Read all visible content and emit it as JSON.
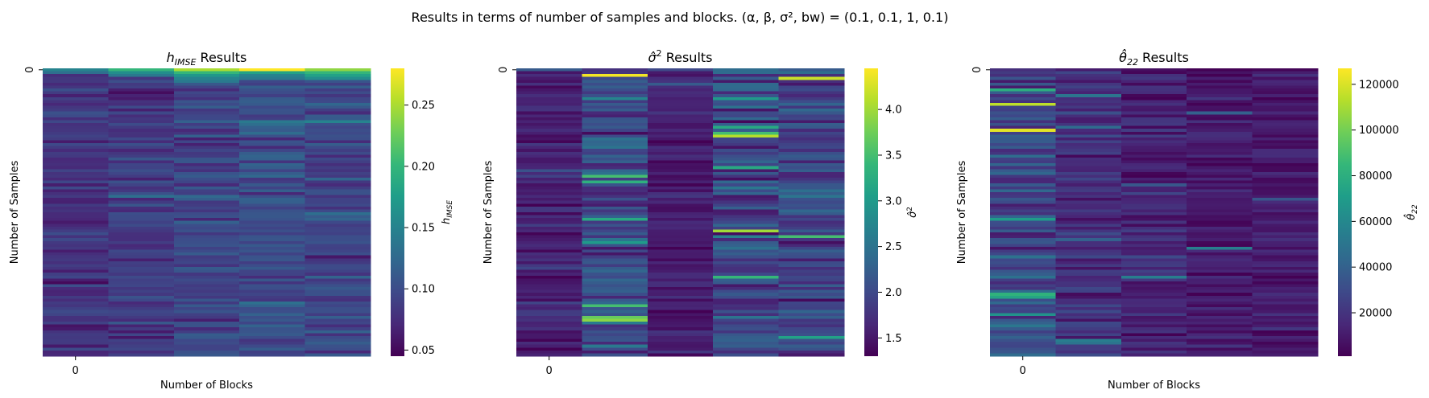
{
  "suptitle": "Results in terms of number of samples and blocks. (α, β, σ², bw) = (0.1, 0.1, 1, 0.1)",
  "colormap": [
    "#440154",
    "#482878",
    "#3e4989",
    "#31688e",
    "#26828e",
    "#1f9e89",
    "#35b779",
    "#6ece58",
    "#b5de2b",
    "#fde725"
  ],
  "chart_data": [
    {
      "type": "heatmap",
      "title": "h_IMSE Results",
      "title_main": "h",
      "title_sub": "IMSE",
      "title_rest": " Results",
      "xlabel": "Number of Blocks",
      "ylabel": "Number of Samples",
      "x_ticks": [
        "0"
      ],
      "y_ticks": [
        "0"
      ],
      "colorbar_label": "h_IMSE",
      "colorbar_ticks": [
        "0.25",
        "0.20",
        "0.15",
        "0.10",
        "0.05"
      ],
      "colorbar_tick_values": [
        0.25,
        0.2,
        0.15,
        0.1,
        0.05
      ],
      "vmin": 0.045,
      "vmax": 0.28,
      "n_rows": 100,
      "n_cols": 5,
      "column_profiles": [
        {
          "mean": 0.08,
          "spread": 0.015,
          "features": [
            [
              0,
              0.15
            ],
            [
              1,
              0.13
            ]
          ]
        },
        {
          "mean": 0.085,
          "spread": 0.016,
          "features": [
            [
              0,
              0.2
            ],
            [
              1,
              0.16
            ],
            [
              2,
              0.14
            ],
            [
              44,
              0.13
            ],
            [
              88,
              0.11
            ]
          ]
        },
        {
          "mean": 0.095,
          "spread": 0.016,
          "features": [
            [
              0,
              0.25
            ],
            [
              1,
              0.2
            ],
            [
              2,
              0.17
            ],
            [
              3,
              0.15
            ],
            [
              4,
              0.14
            ]
          ]
        },
        {
          "mean": 0.1,
          "spread": 0.016,
          "features": [
            [
              0,
              0.28
            ],
            [
              1,
              0.18
            ],
            [
              2,
              0.15
            ],
            [
              3,
              0.14
            ],
            [
              18,
              0.14
            ],
            [
              19,
              0.13
            ],
            [
              30,
              0.12
            ]
          ]
        },
        {
          "mean": 0.095,
          "spread": 0.016,
          "features": [
            [
              0,
              0.24
            ],
            [
              1,
              0.2
            ],
            [
              2,
              0.18
            ],
            [
              3,
              0.16
            ],
            [
              18,
              0.15
            ],
            [
              50,
              0.13
            ],
            [
              72,
              0.12
            ]
          ]
        }
      ]
    },
    {
      "type": "heatmap",
      "title": "σ̂² Results",
      "title_main": "σ̂",
      "title_sup": "2",
      "title_rest": " Results",
      "xlabel": "",
      "ylabel": "Number of Samples",
      "x_ticks": [
        "0"
      ],
      "y_ticks": [
        "0"
      ],
      "colorbar_label": "σ̂²",
      "colorbar_ticks": [
        "4.0",
        "3.5",
        "3.0",
        "2.5",
        "2.0",
        "1.5"
      ],
      "colorbar_tick_values": [
        4.0,
        3.5,
        3.0,
        2.5,
        2.0,
        1.5
      ],
      "vmin": 1.3,
      "vmax": 4.45,
      "n_rows": 100,
      "n_cols": 5,
      "column_profiles": [
        {
          "mean": 1.6,
          "spread": 0.18,
          "features": [
            [
              0,
              2.2
            ],
            [
              35,
              2.1
            ]
          ]
        },
        {
          "mean": 2.0,
          "spread": 0.35,
          "features": [
            [
              2,
              4.4
            ],
            [
              37,
              3.5
            ],
            [
              39,
              3.3
            ],
            [
              52,
              3.2
            ],
            [
              60,
              3.0
            ],
            [
              82,
              3.5
            ],
            [
              86,
              3.7
            ],
            [
              87,
              3.9
            ]
          ]
        },
        {
          "mean": 1.55,
          "spread": 0.15,
          "features": [
            [
              0,
              2.0
            ],
            [
              5,
              2.2
            ]
          ]
        },
        {
          "mean": 1.95,
          "spread": 0.33,
          "features": [
            [
              0,
              2.4
            ],
            [
              10,
              3.0
            ],
            [
              20,
              3.2
            ],
            [
              22,
              3.5
            ],
            [
              23,
              4.1
            ],
            [
              34,
              3.2
            ],
            [
              56,
              4.0
            ],
            [
              72,
              3.4
            ]
          ]
        },
        {
          "mean": 1.95,
          "spread": 0.3,
          "features": [
            [
              0,
              2.2
            ],
            [
              3,
              4.2
            ],
            [
              58,
              3.5
            ],
            [
              93,
              3.1
            ]
          ]
        }
      ]
    },
    {
      "type": "heatmap",
      "title": "θ̂₂₂ Results",
      "title_main": "θ̂",
      "title_sub": "22",
      "title_rest": " Results",
      "xlabel": "Number of Blocks",
      "ylabel": "Number of Samples",
      "x_ticks": [
        "0"
      ],
      "y_ticks": [
        "0"
      ],
      "colorbar_label": "θ̂₂₂",
      "colorbar_ticks": [
        "120000",
        "100000",
        "80000",
        "60000",
        "40000",
        "20000"
      ],
      "colorbar_tick_values": [
        120000,
        100000,
        80000,
        60000,
        40000,
        20000
      ],
      "vmin": 1000,
      "vmax": 127000,
      "n_rows": 100,
      "n_cols": 5,
      "column_profiles": [
        {
          "mean": 30000,
          "spread": 12000,
          "features": [
            [
              7,
              80000
            ],
            [
              12,
              115000
            ],
            [
              21,
              122000
            ],
            [
              52,
              70000
            ],
            [
              78,
              82000
            ],
            [
              79,
              75000
            ],
            [
              85,
              65000
            ]
          ]
        },
        {
          "mean": 18000,
          "spread": 9000,
          "features": [
            [
              9,
              50000
            ],
            [
              20,
              45000
            ],
            [
              59,
              40000
            ],
            [
              94,
              55000
            ],
            [
              95,
              50000
            ]
          ]
        },
        {
          "mean": 14000,
          "spread": 8000,
          "features": [
            [
              40,
              35000
            ],
            [
              72,
              55000
            ]
          ]
        },
        {
          "mean": 9000,
          "spread": 6000,
          "features": [
            [
              15,
              40000
            ],
            [
              62,
              55000
            ]
          ]
        },
        {
          "mean": 10000,
          "spread": 7000,
          "features": [
            [
              45,
              35000
            ]
          ]
        }
      ]
    }
  ]
}
